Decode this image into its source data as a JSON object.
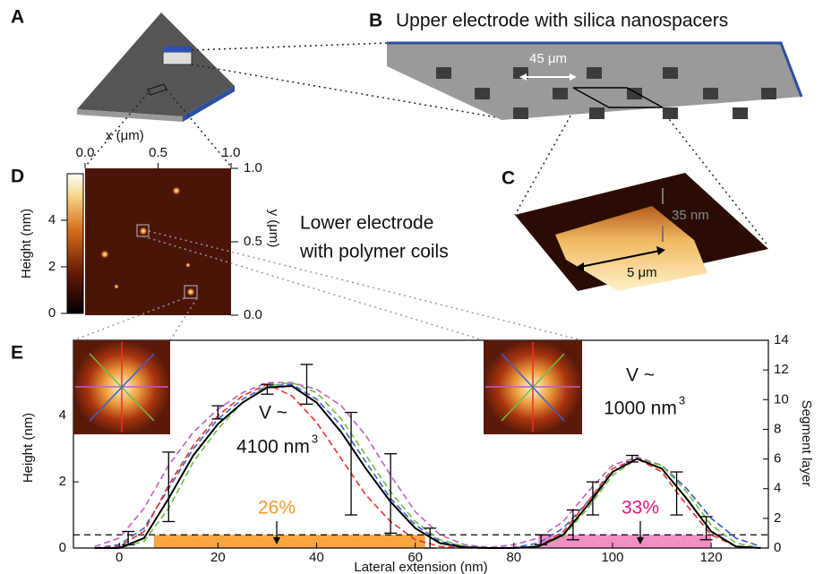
{
  "panels": {
    "A": {
      "label": "A"
    },
    "B": {
      "label": "B",
      "title": "Upper electrode with silica nanospacers",
      "scale_label": "45 μm"
    },
    "C": {
      "label": "C",
      "height_label": "35 nm",
      "width_label": "5 μm"
    },
    "D": {
      "label": "D",
      "caption": [
        "Lower electrode",
        "with polymer coils"
      ],
      "x_label": "x (μm)",
      "y_label": "y (μm)",
      "xticks": [
        {
          "value": 0,
          "label": "0.0"
        },
        {
          "value": 0.5,
          "label": "0.5"
        },
        {
          "value": 1,
          "label": "1.0"
        }
      ],
      "yticks": [
        {
          "value": 0,
          "label": "0.0"
        },
        {
          "value": 0.5,
          "label": "0.5"
        },
        {
          "value": 1,
          "label": "1.0"
        }
      ],
      "colorbar": {
        "label": "Height (nm)",
        "lim": [
          0,
          6
        ],
        "ticks": [
          0,
          2,
          4
        ]
      }
    },
    "E": {
      "label": "E"
    }
  },
  "chart_data": {
    "type": "line",
    "x_label": "Lateral extension (nm)",
    "y_label": "Height (nm)",
    "y2_label": "Segment layer",
    "x": [
      -5,
      0,
      5,
      10,
      15,
      20,
      25,
      30,
      35,
      40,
      45,
      50,
      55,
      60,
      65,
      70,
      75,
      80,
      85,
      90,
      95,
      100,
      105,
      110,
      115,
      120,
      125,
      130
    ],
    "xlim": [
      -9.3,
      131.6
    ],
    "xticks": [
      0,
      20,
      40,
      60,
      80,
      100,
      120
    ],
    "ylim": [
      0,
      6.28
    ],
    "yticks": [
      0,
      2,
      4
    ],
    "y2lim": [
      0,
      14
    ],
    "y2ticks": [
      0,
      2,
      4,
      6,
      8,
      10,
      12,
      14
    ],
    "series": [
      {
        "color": "#c060c0",
        "dashed": true,
        "values": [
          0.05,
          0.3,
          1.2,
          2.5,
          3.5,
          4.2,
          4.7,
          5.0,
          5.0,
          4.8,
          4.3,
          3.4,
          2.2,
          1.1,
          0.4,
          0.1,
          0.02,
          0.1,
          0.3,
          0.8,
          1.7,
          2.5,
          2.75,
          2.5,
          1.8,
          0.9,
          0.3,
          0.05
        ]
      },
      {
        "color": "#3a5fcd",
        "dashed": true,
        "values": [
          0,
          0.1,
          0.6,
          1.8,
          3.0,
          3.9,
          4.5,
          4.9,
          4.95,
          4.5,
          3.7,
          2.6,
          1.5,
          0.7,
          0.2,
          0.05,
          0,
          0.02,
          0.15,
          0.6,
          1.4,
          2.3,
          2.7,
          2.5,
          1.8,
          0.9,
          0.3,
          0.05
        ]
      },
      {
        "color": "#6cbf3e",
        "dashed": true,
        "values": [
          0,
          0,
          0.2,
          1.2,
          2.6,
          3.6,
          4.4,
          4.9,
          5.0,
          4.7,
          3.9,
          2.8,
          1.7,
          0.8,
          0.25,
          0.05,
          0,
          0,
          0.05,
          0.35,
          1.2,
          2.2,
          2.7,
          2.5,
          1.7,
          0.7,
          0.15,
          0
        ]
      },
      {
        "color": "#e8322b",
        "dashed": true,
        "values": [
          0,
          0.05,
          0.5,
          1.9,
          3.1,
          4.0,
          4.6,
          4.95,
          4.6,
          3.8,
          2.7,
          1.6,
          0.8,
          0.25,
          0.05,
          0,
          0,
          0,
          0.05,
          0.5,
          1.4,
          2.4,
          2.7,
          2.3,
          1.3,
          0.4,
          0.05,
          0
        ]
      },
      {
        "color": "#000000",
        "dashed": false,
        "values": [
          0,
          0,
          0.3,
          1.5,
          2.8,
          3.75,
          4.4,
          4.85,
          4.9,
          4.4,
          3.5,
          2.4,
          1.4,
          0.6,
          0.15,
          0.02,
          0,
          0,
          0.05,
          0.4,
          1.3,
          2.3,
          2.7,
          2.4,
          1.5,
          0.5,
          0.05,
          0
        ]
      }
    ],
    "error_bars": {
      "x": [
        1.8,
        10,
        20,
        30,
        38,
        47,
        55,
        63,
        85.5,
        92,
        96,
        104,
        113,
        119
      ],
      "values": [
        0.3,
        1.85,
        4.1,
        4.8,
        4.95,
        2.55,
        1.65,
        0.3,
        0.25,
        0.7,
        1.5,
        2.7,
        1.65,
        0.6
      ],
      "errors": [
        0.2,
        1.05,
        0.2,
        0.15,
        0.6,
        1.55,
        1.2,
        0.3,
        0.15,
        0.45,
        0.5,
        0.1,
        0.65,
        0.35
      ]
    },
    "reference_line": 0.4,
    "bands": [
      {
        "x": [
          7,
          62
        ],
        "value": 0.4,
        "color": "#f7a540"
      },
      {
        "x": [
          85,
          120
        ],
        "value": 0.4,
        "color": "#ef8fc4"
      }
    ],
    "annotations": [
      {
        "text": "26%",
        "color": "#f39a2b"
      },
      {
        "text": "33%",
        "color": "#e0157f"
      }
    ],
    "volumes": [
      {
        "prefix": "V ~",
        "value": "4100 nm",
        "exponent": "3"
      },
      {
        "prefix": "V ~",
        "value": "1000 nm",
        "exponent": "3"
      }
    ]
  }
}
